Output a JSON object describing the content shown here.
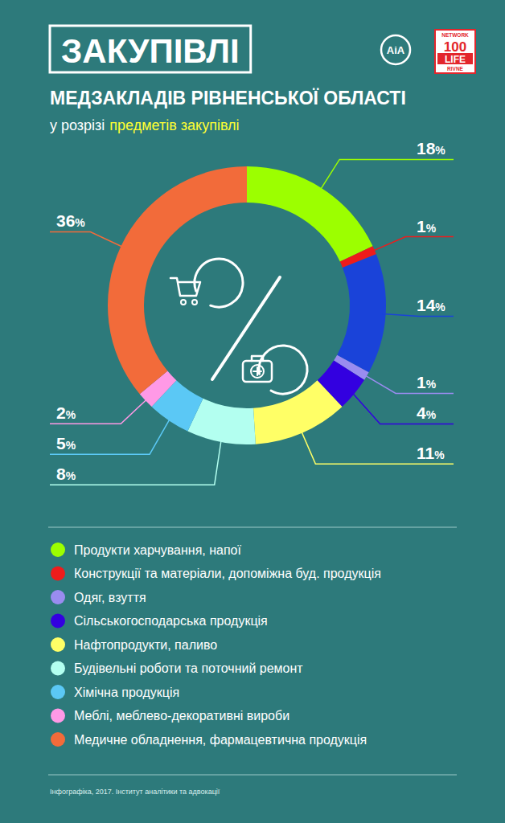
{
  "chart_data": {
    "type": "donut",
    "title": "ЗАКУПІВЛІ",
    "subtitle": "МЕДЗАКЛАДІВ РІВНЕНСЬКОЇ ОБЛАСТІ",
    "annotations": {
      "caption": "у розрізі",
      "caption_highlight": "предметів закупівлі",
      "source": "Інфографіка, 2017. Інститут аналітики та адвокації",
      "logo_left": "AiA",
      "logo_right": [
        "NETWORK",
        "100",
        "LIFE",
        "RIVNE"
      ]
    },
    "categories": [
      "Продукти харчування, напої",
      "Конструкції та матеріали, допоміжна буд. продукція",
      null,
      "Одяг, взуття",
      "Сільськогосподарська продукція",
      "Нафтопродукти, паливо",
      "Будівельні роботи та поточний ремонт",
      "Хімічна продукція",
      "Меблі, меблево-декоративні вироби",
      "Медичне обладнення, фармацевтична продукція"
    ],
    "values": [
      18,
      1,
      14,
      1,
      4,
      11,
      8,
      5,
      2,
      36
    ],
    "value_labels": [
      "18%",
      "1%",
      "14%",
      "1%",
      "4%",
      "11%",
      "8%",
      "5%",
      "2%",
      "36%"
    ],
    "colors": [
      "#9cff00",
      "#ee1c1c",
      "#1a43d9",
      "#9a8cf0",
      "#3300e0",
      "#ffff66",
      "#b3fff0",
      "#5bc8f5",
      "#ff99e6",
      "#f26b3a"
    ],
    "data_labels": true,
    "legend": "bottom"
  }
}
